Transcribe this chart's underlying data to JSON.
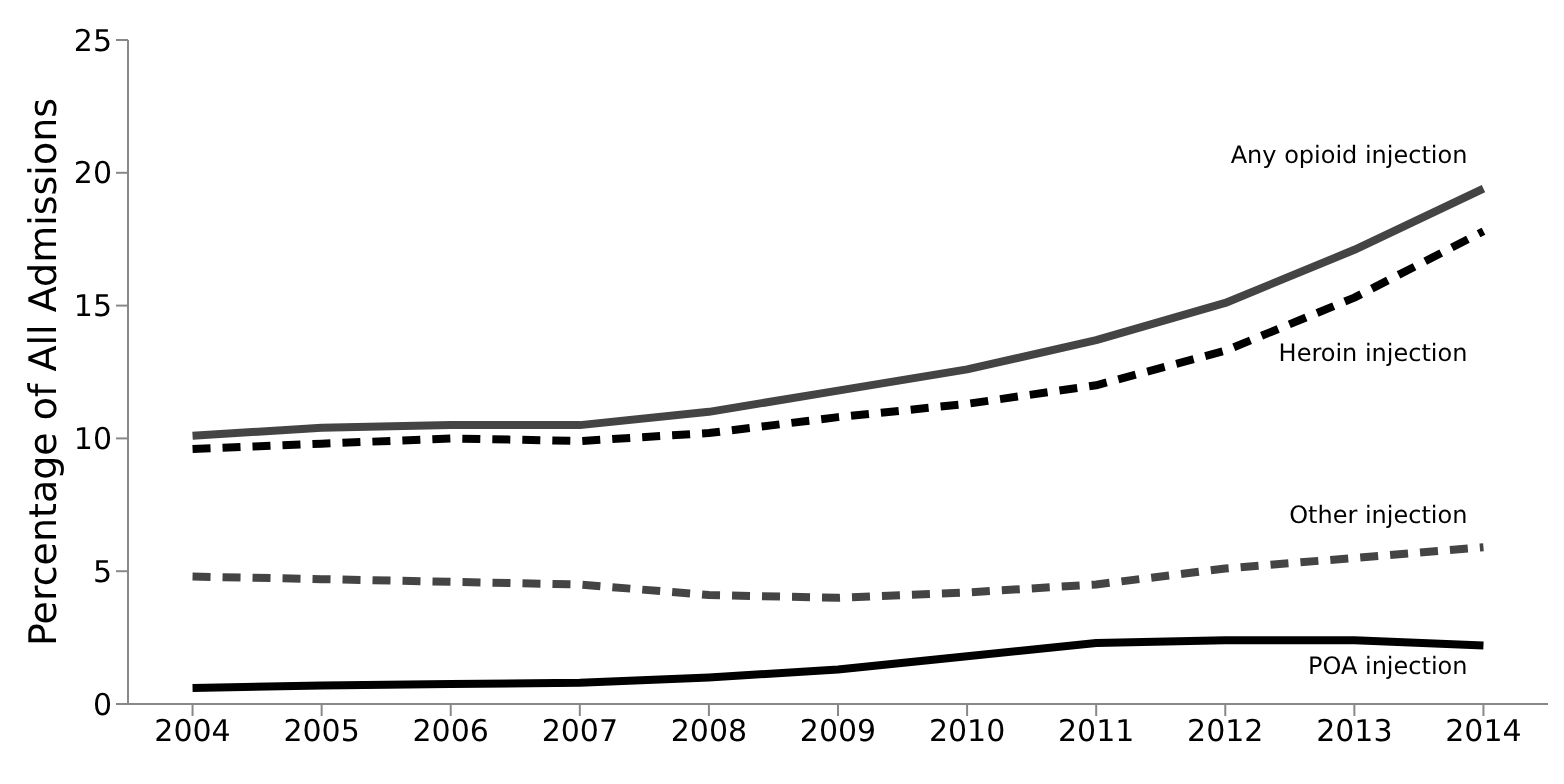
{
  "chart_data": {
    "type": "line",
    "ylabel": "Percentage of All Admissions",
    "categories": [
      "2004",
      "2005",
      "2006",
      "2007",
      "2008",
      "2009",
      "2010",
      "2011",
      "2012",
      "2013",
      "2014"
    ],
    "series": [
      {
        "name": "Any opioid injection",
        "color": "#444444",
        "line_style": "solid",
        "values": [
          10.1,
          10.4,
          10.5,
          10.5,
          11.0,
          11.8,
          12.6,
          13.7,
          15.1,
          17.1,
          19.4
        ]
      },
      {
        "name": "Heroin injection",
        "color": "#000000",
        "line_style": "dashed",
        "values": [
          9.6,
          9.8,
          10.0,
          9.9,
          10.2,
          10.8,
          11.3,
          12.0,
          13.3,
          15.3,
          17.8
        ]
      },
      {
        "name": "Other injection",
        "color": "#444444",
        "line_style": "dashed",
        "values": [
          4.8,
          4.7,
          4.6,
          4.5,
          4.1,
          4.0,
          4.2,
          4.5,
          5.1,
          5.5,
          5.9
        ]
      },
      {
        "name": "POA injection",
        "color": "#000000",
        "line_style": "solid",
        "values": [
          0.6,
          0.7,
          0.75,
          0.8,
          1.0,
          1.3,
          1.8,
          2.3,
          2.4,
          2.4,
          2.2
        ]
      }
    ],
    "ylim": [
      0,
      25
    ],
    "yticks": [
      0,
      5,
      10,
      15,
      20,
      25
    ],
    "grid": false,
    "legend": false,
    "marker": "none"
  }
}
